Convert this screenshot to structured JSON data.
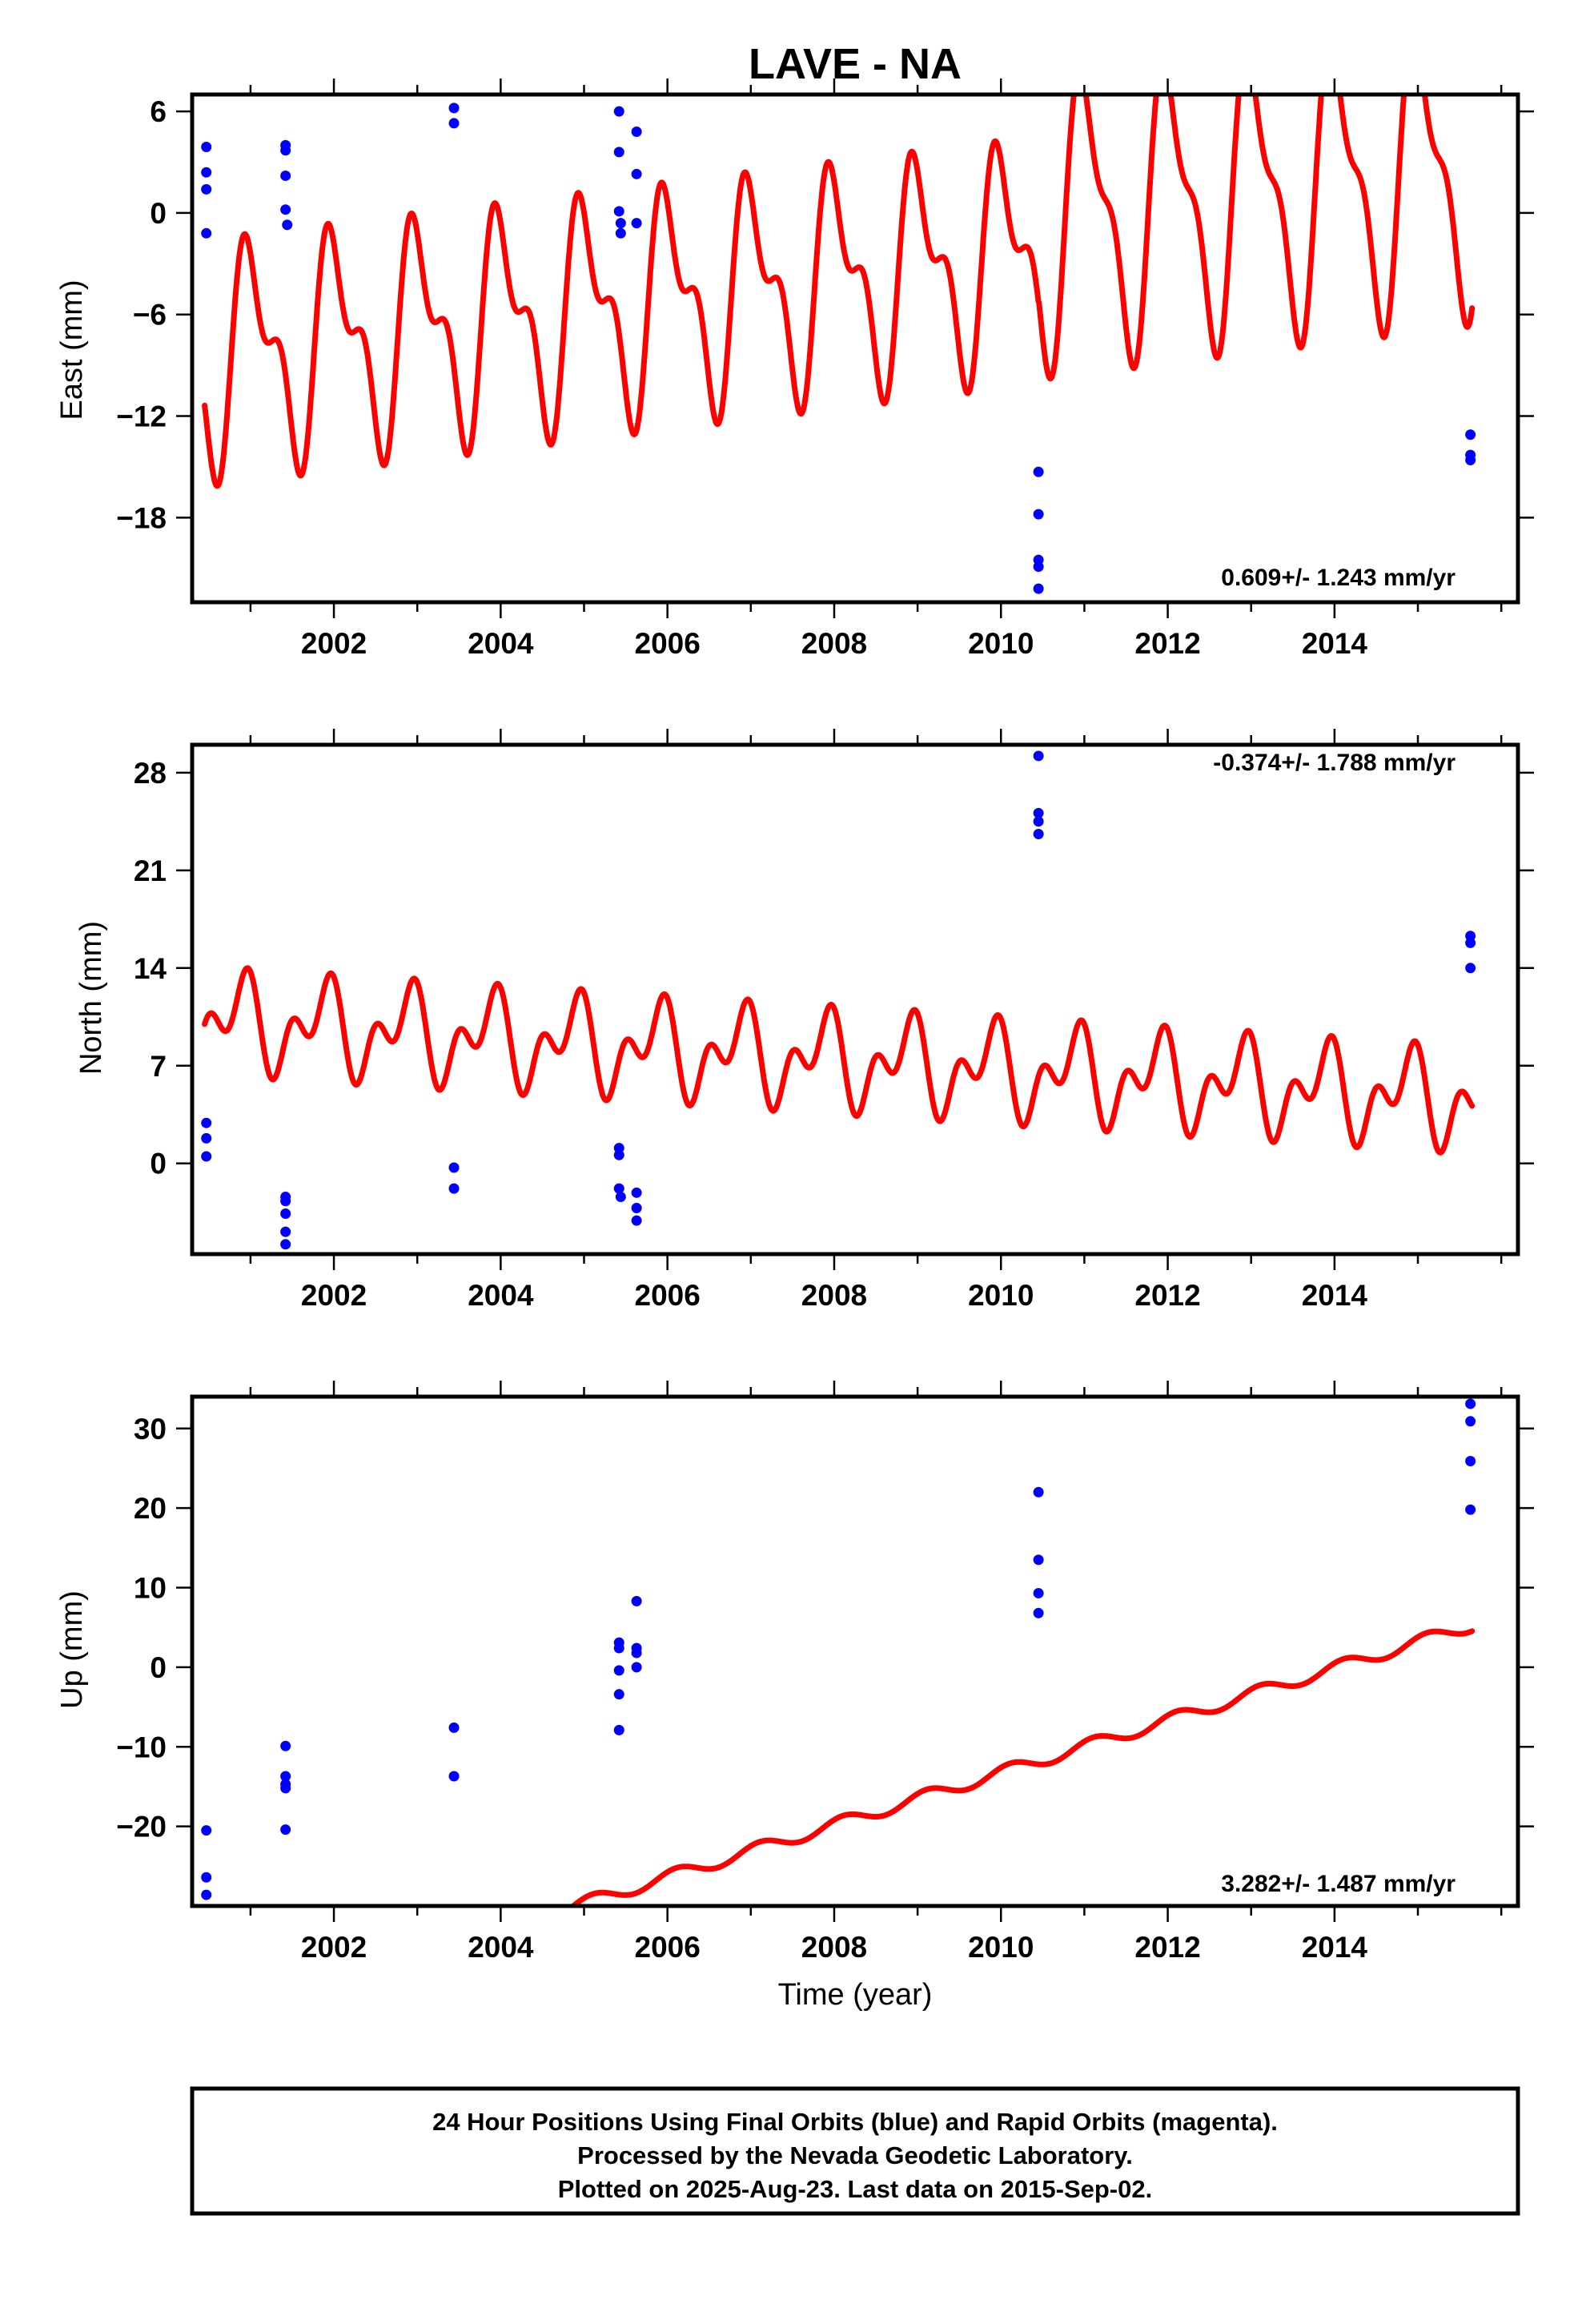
{
  "title": "LAVE - NA",
  "footer": {
    "line1": "24 Hour Positions Using Final Orbits (blue) and Rapid Orbits (magenta).",
    "line2": "Processed by the Nevada Geodetic Laboratory.",
    "line3": "Plotted on 2025-Aug-23. Last data on 2015-Sep-02."
  },
  "colors": {
    "final_orbits": "#0000ff",
    "model": "#ff0000",
    "frame": "#000000"
  },
  "chart_data": [
    {
      "type": "scatter",
      "ylabel": "East (mm)",
      "xlim": [
        2000.3,
        2016.2
      ],
      "ylim": [
        -23,
        7
      ],
      "xticks": [
        2002,
        2004,
        2006,
        2008,
        2010,
        2012,
        2014
      ],
      "yticks": [
        -18,
        -12,
        -6,
        0,
        6
      ],
      "rate_label": "0.609+/- 1.243 mm/yr",
      "rate_position": "bottom-right",
      "series": [
        {
          "points": [
            [
              2000.47,
              3.9
            ],
            [
              2000.47,
              2.4
            ],
            [
              2000.47,
              1.4
            ],
            [
              2000.47,
              -1.2
            ],
            [
              2001.42,
              4.0
            ],
            [
              2001.42,
              3.7
            ],
            [
              2001.42,
              2.2
            ],
            [
              2001.42,
              0.2
            ],
            [
              2001.44,
              -0.7
            ],
            [
              2003.44,
              6.2
            ],
            [
              2003.44,
              5.3
            ],
            [
              2005.42,
              6.0
            ],
            [
              2005.42,
              3.6
            ],
            [
              2005.42,
              0.1
            ],
            [
              2005.44,
              -0.6
            ],
            [
              2005.44,
              -1.2
            ],
            [
              2005.63,
              4.8
            ],
            [
              2005.63,
              2.3
            ],
            [
              2005.63,
              -0.6
            ],
            [
              2010.45,
              -15.3
            ],
            [
              2010.45,
              -17.8
            ],
            [
              2010.45,
              -20.5
            ],
            [
              2010.45,
              -20.9
            ],
            [
              2010.45,
              -22.2
            ],
            [
              2015.63,
              -13.1
            ],
            [
              2015.63,
              -14.3
            ],
            [
              2015.63,
              -14.6
            ]
          ]
        },
        {
          "model": {
            "start": 2000.45,
            "end": 2015.65,
            "offset": -4.0,
            "rate": 0.609,
            "annual_amp": 5.5,
            "annual_phase": 1.4,
            "semiannual_amp": 3.0,
            "semiannual_phase": 3.0,
            "step_year": 2010.45,
            "step_after_amp": 1.35,
            "step_after_offset": 2.0
          }
        }
      ]
    },
    {
      "type": "scatter",
      "ylabel": "North (mm)",
      "xlim": [
        2000.3,
        2016.2
      ],
      "ylim": [
        -6.5,
        30
      ],
      "xticks": [
        2002,
        2004,
        2006,
        2008,
        2010,
        2012,
        2014
      ],
      "yticks": [
        0,
        7,
        14,
        21,
        28
      ],
      "rate_label": "-0.374+/- 1.788 mm/yr",
      "rate_position": "top-right",
      "series": [
        {
          "points": [
            [
              2000.47,
              2.9
            ],
            [
              2000.47,
              1.8
            ],
            [
              2000.47,
              0.5
            ],
            [
              2001.42,
              -2.4
            ],
            [
              2001.42,
              -2.7
            ],
            [
              2001.42,
              -3.6
            ],
            [
              2001.42,
              -4.9
            ],
            [
              2001.42,
              -5.8
            ],
            [
              2003.44,
              -0.3
            ],
            [
              2003.44,
              -1.8
            ],
            [
              2005.42,
              1.1
            ],
            [
              2005.42,
              0.6
            ],
            [
              2005.42,
              -1.8
            ],
            [
              2005.44,
              -2.4
            ],
            [
              2005.63,
              -2.1
            ],
            [
              2005.63,
              -3.2
            ],
            [
              2005.63,
              -4.1
            ],
            [
              2010.45,
              29.2
            ],
            [
              2010.45,
              25.1
            ],
            [
              2010.45,
              24.5
            ],
            [
              2010.45,
              23.6
            ],
            [
              2015.63,
              16.3
            ],
            [
              2015.63,
              15.8
            ],
            [
              2015.63,
              14.0
            ]
          ]
        },
        {
          "model": {
            "start": 2000.45,
            "end": 2015.65,
            "offset": 7.4,
            "rate": -0.374,
            "annual_amp": 2.4,
            "annual_phase": 2.4,
            "semiannual_amp": 2.1,
            "semiannual_phase": 1.7
          }
        }
      ]
    },
    {
      "type": "scatter",
      "ylabel": "Up (mm)",
      "xlabel": "Time (year)",
      "xlim": [
        2000.3,
        2016.2
      ],
      "ylim": [
        -30,
        34
      ],
      "xticks": [
        2002,
        2004,
        2006,
        2008,
        2010,
        2012,
        2014
      ],
      "yticks": [
        -20,
        -10,
        0,
        10,
        20,
        30
      ],
      "rate_label": "3.282+/- 1.487 mm/yr",
      "rate_position": "bottom-right",
      "series": [
        {
          "points": [
            [
              2000.47,
              -20.5
            ],
            [
              2000.47,
              -26.4
            ],
            [
              2000.47,
              -28.6
            ],
            [
              2001.42,
              -9.9
            ],
            [
              2001.42,
              -13.7
            ],
            [
              2001.42,
              -14.7
            ],
            [
              2001.42,
              -15.2
            ],
            [
              2001.42,
              -20.4
            ],
            [
              2003.44,
              -7.6
            ],
            [
              2003.44,
              -13.7
            ],
            [
              2005.42,
              3.1
            ],
            [
              2005.42,
              2.4
            ],
            [
              2005.42,
              -0.4
            ],
            [
              2005.42,
              -3.4
            ],
            [
              2005.42,
              -7.9
            ],
            [
              2005.63,
              8.3
            ],
            [
              2005.63,
              2.4
            ],
            [
              2005.63,
              1.8
            ],
            [
              2005.63,
              0.0
            ],
            [
              2010.45,
              22.0
            ],
            [
              2010.45,
              13.5
            ],
            [
              2010.45,
              9.3
            ],
            [
              2010.45,
              6.8
            ],
            [
              2015.63,
              33.1
            ],
            [
              2015.63,
              30.9
            ],
            [
              2015.63,
              25.9
            ],
            [
              2015.63,
              19.8
            ]
          ]
        },
        {
          "model": {
            "start": 2000.45,
            "end": 2015.65,
            "offset": -19.8,
            "rate": 3.282,
            "annual_amp": 0.8,
            "annual_phase": 0.9,
            "semiannual_amp": 0.0,
            "semiannual_phase": 0.0
          }
        }
      ]
    }
  ]
}
